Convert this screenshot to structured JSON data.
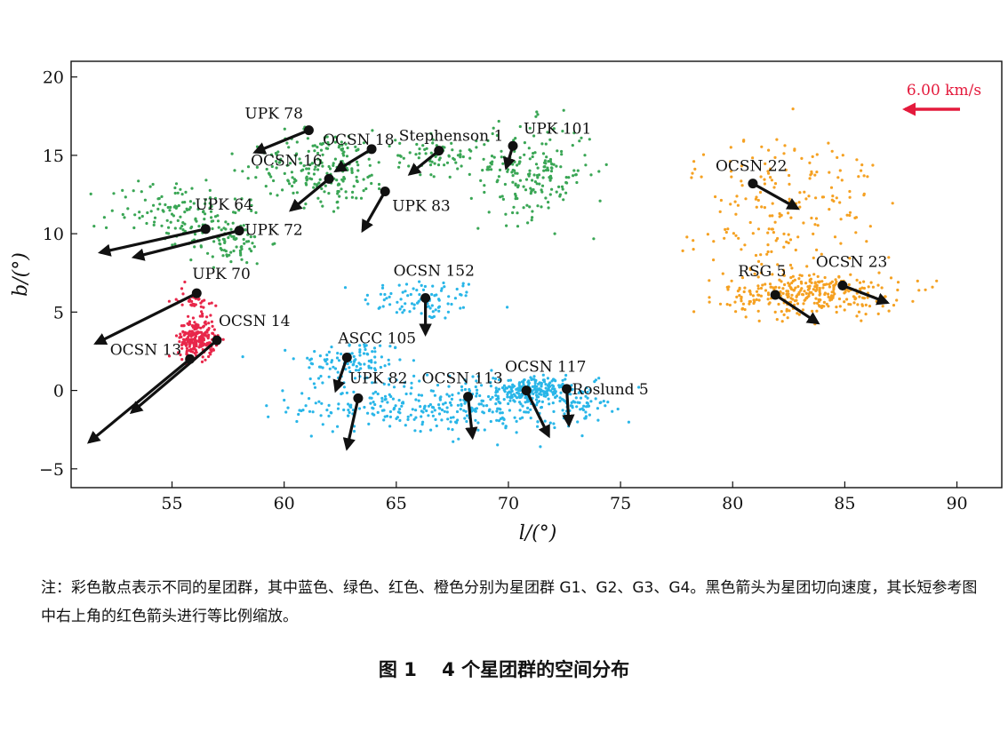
{
  "chart_data": {
    "type": "scatter",
    "xlabel": "l/(°)",
    "ylabel": "b/(°)",
    "xlim": [
      50.5,
      92
    ],
    "ylim": [
      -6.2,
      21
    ],
    "x_ticks": [
      55,
      60,
      65,
      70,
      75,
      80,
      85,
      90
    ],
    "y_ticks": [
      -5,
      0,
      5,
      10,
      15,
      20
    ],
    "grid": false,
    "groups": [
      {
        "group": "G1",
        "color": "#29b6e8",
        "regions": [
          {
            "cx": 66.2,
            "cy": 5.8,
            "sx": 1.8,
            "sy": 0.9,
            "n": 90
          },
          {
            "cx": 63.0,
            "cy": 1.8,
            "sx": 1.6,
            "sy": 1.0,
            "n": 110
          },
          {
            "cx": 64.5,
            "cy": -1.0,
            "sx": 2.8,
            "sy": 1.1,
            "n": 160
          },
          {
            "cx": 69.5,
            "cy": -1.0,
            "sx": 2.8,
            "sy": 1.2,
            "n": 200
          },
          {
            "cx": 71.0,
            "cy": 0.0,
            "sx": 1.0,
            "sy": 0.6,
            "n": 170
          },
          {
            "cx": 73.2,
            "cy": -0.8,
            "sx": 1.0,
            "sy": 0.8,
            "n": 60
          }
        ]
      },
      {
        "group": "G2",
        "color": "#3aa655",
        "regions": [
          {
            "cx": 55.2,
            "cy": 11.5,
            "sx": 2.0,
            "sy": 1.4,
            "n": 120
          },
          {
            "cx": 57.5,
            "cy": 9.5,
            "sx": 1.2,
            "sy": 1.0,
            "n": 90
          },
          {
            "cx": 61.8,
            "cy": 14.2,
            "sx": 2.0,
            "sy": 1.6,
            "n": 210
          },
          {
            "cx": 66.8,
            "cy": 15.0,
            "sx": 1.2,
            "sy": 0.8,
            "n": 70
          },
          {
            "cx": 71.0,
            "cy": 14.0,
            "sx": 1.8,
            "sy": 2.0,
            "n": 200
          }
        ]
      },
      {
        "group": "G3",
        "color": "#e8274a",
        "regions": [
          {
            "cx": 56.1,
            "cy": 3.3,
            "sx": 0.55,
            "sy": 0.8,
            "n": 230
          },
          {
            "cx": 56.0,
            "cy": 5.8,
            "sx": 0.5,
            "sy": 0.6,
            "n": 40
          }
        ]
      },
      {
        "group": "G4",
        "color": "#f5a122",
        "regions": [
          {
            "cx": 82.5,
            "cy": 13.0,
            "sx": 2.8,
            "sy": 2.3,
            "n": 130
          },
          {
            "cx": 83.5,
            "cy": 6.2,
            "sx": 2.6,
            "sy": 0.9,
            "n": 320
          },
          {
            "cx": 81.5,
            "cy": 9.5,
            "sx": 2.8,
            "sy": 1.6,
            "n": 60
          }
        ]
      }
    ],
    "clusters": [
      {
        "name": "UPK 78",
        "l": 61.1,
        "b": 16.6,
        "tip_l": 58.7,
        "tip_b": 15.2
      },
      {
        "name": "OCSN 18",
        "l": 63.9,
        "b": 15.4,
        "tip_l": 62.3,
        "tip_b": 14.0
      },
      {
        "name": "Stephenson 1",
        "l": 66.9,
        "b": 15.3,
        "tip_l": 65.6,
        "tip_b": 13.8
      },
      {
        "name": "UPK 101",
        "l": 70.2,
        "b": 15.6,
        "tip_l": 69.9,
        "tip_b": 14.2
      },
      {
        "name": "OCSN 16",
        "l": 62.0,
        "b": 13.5,
        "tip_l": 60.3,
        "tip_b": 11.5
      },
      {
        "name": "UPK 83",
        "l": 64.5,
        "b": 12.7,
        "tip_l": 63.5,
        "tip_b": 10.2
      },
      {
        "name": "UPK 64",
        "l": 56.5,
        "b": 10.3,
        "tip_l": 51.8,
        "tip_b": 8.8
      },
      {
        "name": "UPK 72",
        "l": 58.0,
        "b": 10.2,
        "tip_l": 53.3,
        "tip_b": 8.5
      },
      {
        "name": "OCSN 22",
        "l": 80.9,
        "b": 13.2,
        "tip_l": 82.9,
        "tip_b": 11.6
      },
      {
        "name": "UPK 70",
        "l": 56.1,
        "b": 6.2,
        "tip_l": 51.6,
        "tip_b": 3.0
      },
      {
        "name": "OCSN 152",
        "l": 66.3,
        "b": 5.9,
        "tip_l": 66.3,
        "tip_b": 3.6
      },
      {
        "name": "RSG 5",
        "l": 81.9,
        "b": 6.1,
        "tip_l": 83.8,
        "tip_b": 4.3
      },
      {
        "name": "OCSN 23",
        "l": 84.9,
        "b": 6.7,
        "tip_l": 86.9,
        "tip_b": 5.6
      },
      {
        "name": "OCSN 14",
        "l": 57.0,
        "b": 3.2,
        "tip_l": 53.2,
        "tip_b": -1.4
      },
      {
        "name": "OCSN 13",
        "l": 55.8,
        "b": 2.0,
        "tip_l": 51.3,
        "tip_b": -3.3
      },
      {
        "name": "ASCC 105",
        "l": 62.8,
        "b": 2.1,
        "tip_l": 62.3,
        "tip_b": 0.0
      },
      {
        "name": "UPK 82",
        "l": 63.3,
        "b": -0.5,
        "tip_l": 62.8,
        "tip_b": -3.7
      },
      {
        "name": "OCSN 113",
        "l": 68.2,
        "b": -0.4,
        "tip_l": 68.4,
        "tip_b": -3.0
      },
      {
        "name": "OCSN 117",
        "l": 70.8,
        "b": 0.0,
        "tip_l": 71.8,
        "tip_b": -2.9
      },
      {
        "name": "Roslund 5",
        "l": 72.6,
        "b": 0.1,
        "tip_l": 72.7,
        "tip_b": -2.2
      }
    ],
    "scale_arrow": {
      "label": "6.00 km/s",
      "color": "#e41a3c"
    }
  },
  "note": "注：彩色散点表示不同的星团群，其中蓝色、绿色、红色、橙色分别为星团群 G1、G2、G3、G4。黑色箭头为星团切向速度，其长短参考图中右上角的红色箭头进行等比例缩放。",
  "caption": "图 1　 4 个星团群的空间分布"
}
